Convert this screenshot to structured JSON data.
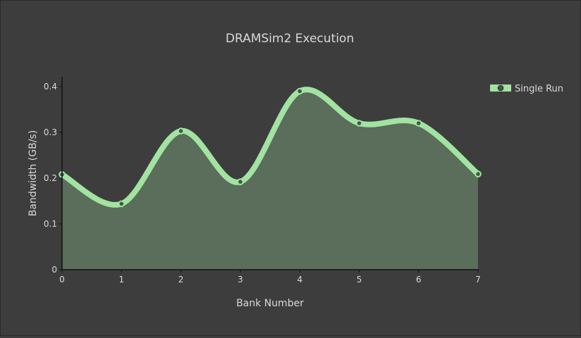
{
  "chart_data": {
    "type": "area",
    "title": "DRAMSim2 Execution",
    "xlabel": "Bank Number",
    "ylabel": "Bandwidth (GB/s)",
    "x": [
      0,
      1,
      2,
      3,
      4,
      5,
      6,
      7
    ],
    "series": [
      {
        "name": "Single Run",
        "values": [
          0.208,
          0.144,
          0.303,
          0.192,
          0.39,
          0.32,
          0.32,
          0.209
        ]
      }
    ],
    "xlim": [
      0,
      7
    ],
    "ylim": [
      0,
      0.42
    ],
    "xticks": [
      "0",
      "1",
      "2",
      "3",
      "4",
      "5",
      "6",
      "7"
    ],
    "yticks": [
      0,
      0.1,
      0.2,
      0.3,
      0.4
    ],
    "ytick_labels": [
      "0",
      "0.1",
      "0.2",
      "0.3",
      "0.4"
    ],
    "grid": false,
    "legend_position": "top-right",
    "line_shape": "spline",
    "colors": {
      "background": "#3d3d3d",
      "line": "#a2e3a2",
      "fill": "#5b6d5b",
      "marker_fill": "#3d5c3d",
      "axis": "#111111",
      "text": "#d9d9d9"
    }
  }
}
